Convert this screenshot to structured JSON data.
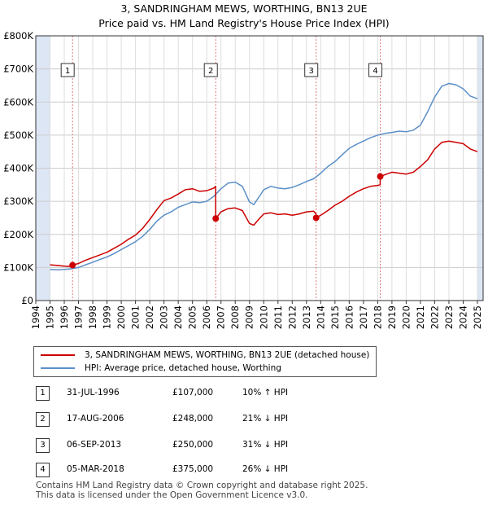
{
  "title": {
    "line1": "3, SANDRINGHAM MEWS, WORTHING, BN13 2UE",
    "line2": "Price paid vs. HM Land Registry's House Price Index (HPI)"
  },
  "legend": {
    "red_label": "3, SANDRINGHAM MEWS, WORTHING, BN13 2UE (detached house)",
    "blue_label": "HPI: Average price, detached house, Worthing"
  },
  "transactions": [
    {
      "num": "1",
      "date": "31-JUL-1996",
      "price": "£107,000",
      "hpi": "10% ↑ HPI"
    },
    {
      "num": "2",
      "date": "17-AUG-2006",
      "price": "£248,000",
      "hpi": "21% ↓ HPI"
    },
    {
      "num": "3",
      "date": "06-SEP-2013",
      "price": "£250,000",
      "hpi": "31% ↓ HPI"
    },
    {
      "num": "4",
      "date": "05-MAR-2018",
      "price": "£375,000",
      "hpi": "26% ↓ HPI"
    }
  ],
  "footer": {
    "line1": "Contains HM Land Registry data © Crown copyright and database right 2025.",
    "line2": "This data is licensed under the Open Government Licence v3.0."
  },
  "colors": {
    "property": "#cc0000",
    "hpi": "#5b8fc9",
    "shade": "#dde6f5",
    "marker_line": "#dd7777"
  },
  "chart_data": {
    "type": "line",
    "xlim": [
      1994,
      2025.4
    ],
    "ylim": [
      0,
      800000
    ],
    "xticks": [
      1994,
      1995,
      1996,
      1997,
      1998,
      1999,
      2000,
      2001,
      2002,
      2003,
      2004,
      2005,
      2006,
      2007,
      2008,
      2009,
      2010,
      2011,
      2012,
      2013,
      2014,
      2015,
      2016,
      2017,
      2018,
      2019,
      2020,
      2021,
      2022,
      2023,
      2024,
      2025
    ],
    "yticks": [
      {
        "value": 0,
        "label": "£0"
      },
      {
        "value": 100000,
        "label": "£100K"
      },
      {
        "value": 200000,
        "label": "£200K"
      },
      {
        "value": 300000,
        "label": "£300K"
      },
      {
        "value": 400000,
        "label": "£400K"
      },
      {
        "value": 500000,
        "label": "£500K"
      },
      {
        "value": 600000,
        "label": "£600K"
      },
      {
        "value": 700000,
        "label": "£700K"
      },
      {
        "value": 800000,
        "label": "£800K"
      }
    ],
    "shaded_ranges": [
      [
        1994,
        1995.0
      ],
      [
        2025.0,
        2025.4
      ]
    ],
    "sales": [
      {
        "label": "1",
        "x": 1996.58,
        "y": 107000
      },
      {
        "label": "2",
        "x": 2006.63,
        "y": 248000
      },
      {
        "label": "3",
        "x": 2013.68,
        "y": 250000
      },
      {
        "label": "4",
        "x": 2018.18,
        "y": 375000
      }
    ],
    "series": [
      {
        "name": "3, SANDRINGHAM MEWS, WORTHING, BN13 2UE (detached house)",
        "x": [
          1995.0,
          1995.5,
          1996.0,
          1996.57,
          1996.58,
          1997.0,
          1997.5,
          1998.0,
          1998.5,
          1999.0,
          1999.5,
          2000.0,
          2000.5,
          2001.0,
          2001.5,
          2002.0,
          2002.5,
          2003.0,
          2003.5,
          2004.0,
          2004.5,
          2005.0,
          2005.5,
          2006.0,
          2006.5,
          2006.62,
          2006.63,
          2007.0,
          2007.5,
          2008.0,
          2008.5,
          2009.0,
          2009.3,
          2009.7,
          2010.0,
          2010.5,
          2011.0,
          2011.5,
          2012.0,
          2012.5,
          2013.0,
          2013.5,
          2013.67,
          2013.68,
          2014.0,
          2014.5,
          2015.0,
          2015.5,
          2016.0,
          2016.5,
          2017.0,
          2017.5,
          2018.0,
          2018.17,
          2018.18,
          2018.5,
          2019.0,
          2019.5,
          2020.0,
          2020.5,
          2021.0,
          2021.5,
          2022.0,
          2022.5,
          2023.0,
          2023.5,
          2024.0,
          2024.5,
          2025.0
        ],
        "values": [
          108000,
          106000,
          104000,
          103000,
          107000,
          112000,
          122000,
          130000,
          138000,
          146000,
          158000,
          170000,
          185000,
          198000,
          218000,
          245000,
          275000,
          302000,
          310000,
          322000,
          335000,
          338000,
          330000,
          332000,
          340000,
          345000,
          248000,
          268000,
          278000,
          280000,
          272000,
          233000,
          228000,
          248000,
          262000,
          265000,
          260000,
          262000,
          258000,
          262000,
          268000,
          270000,
          262000,
          250000,
          258000,
          272000,
          288000,
          300000,
          315000,
          328000,
          338000,
          345000,
          348000,
          350000,
          375000,
          380000,
          388000,
          385000,
          382000,
          388000,
          405000,
          425000,
          458000,
          478000,
          482000,
          478000,
          474000,
          458000,
          450000
        ]
      },
      {
        "name": "HPI: Average price, detached house, Worthing",
        "x": [
          1995.0,
          1995.5,
          1996.0,
          1996.5,
          1997.0,
          1997.5,
          1998.0,
          1998.5,
          1999.0,
          1999.5,
          2000.0,
          2000.5,
          2001.0,
          2001.5,
          2002.0,
          2002.5,
          2003.0,
          2003.5,
          2004.0,
          2004.5,
          2005.0,
          2005.5,
          2006.0,
          2006.5,
          2007.0,
          2007.5,
          2008.0,
          2008.5,
          2009.0,
          2009.3,
          2009.7,
          2010.0,
          2010.5,
          2011.0,
          2011.5,
          2012.0,
          2012.5,
          2013.0,
          2013.5,
          2014.0,
          2014.5,
          2015.0,
          2015.5,
          2016.0,
          2016.5,
          2017.0,
          2017.5,
          2018.0,
          2018.5,
          2019.0,
          2019.5,
          2020.0,
          2020.5,
          2021.0,
          2021.5,
          2022.0,
          2022.5,
          2023.0,
          2023.5,
          2024.0,
          2024.5,
          2025.0
        ],
        "values": [
          94000,
          93000,
          94000,
          96000,
          100000,
          108000,
          116000,
          124000,
          132000,
          142000,
          154000,
          166000,
          178000,
          194000,
          215000,
          240000,
          258000,
          268000,
          282000,
          290000,
          298000,
          296000,
          300000,
          315000,
          338000,
          355000,
          358000,
          345000,
          298000,
          290000,
          315000,
          335000,
          345000,
          340000,
          338000,
          342000,
          350000,
          360000,
          368000,
          385000,
          405000,
          420000,
          440000,
          460000,
          472000,
          482000,
          492000,
          500000,
          505000,
          508000,
          512000,
          510000,
          515000,
          530000,
          570000,
          615000,
          648000,
          656000,
          652000,
          640000,
          618000,
          610000
        ]
      }
    ]
  }
}
